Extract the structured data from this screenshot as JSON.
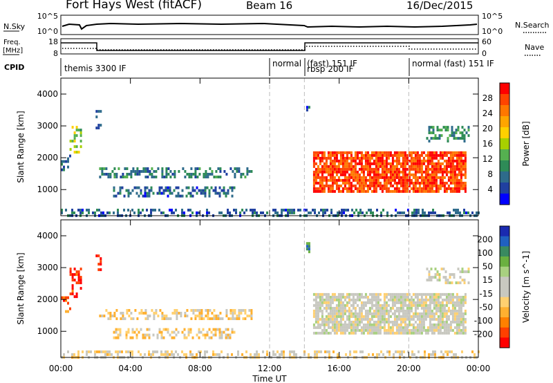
{
  "header": {
    "station": "Fort Hays West (fitACF)",
    "beam": "Beam 16",
    "date": "16/Dec/2015"
  },
  "top_panels": {
    "nsky_label": "N.Sky",
    "nsky_ticks": [
      "10^5",
      "10^0"
    ],
    "nsearch_label": "N.Search",
    "nsearch_ticks": [
      "10^5",
      "10^0"
    ],
    "freq_label_1": "Freq.",
    "freq_label_2": "[MHz]",
    "freq_ticks": [
      "18",
      "8"
    ],
    "nave_label": "Nave",
    "nave_ticks": [
      "60",
      "0"
    ],
    "cpid_label": "CPID",
    "cpid_segments": [
      {
        "label": "themis 3300 IF",
        "start_h": 0,
        "end_h": 12
      },
      {
        "label": "normal",
        "start_h": 12,
        "end_h": 14
      },
      {
        "label": "(fast) 151 IF",
        "start_h": 14,
        "end_h": 20
      },
      {
        "label": "rbsp 200 IF",
        "start_h": 14,
        "end_h": 20
      },
      {
        "label": "normal (fast) 151 IF",
        "start_h": 20,
        "end_h": 24
      }
    ]
  },
  "chart_data": [
    {
      "type": "heatmap",
      "title": "",
      "xlabel": "Time UT",
      "ylabel": "Slant Range [km]",
      "x_ticks": [
        "00:00",
        "04:00",
        "08:00",
        "12:00",
        "16:00",
        "20:00",
        "00:00"
      ],
      "xlim_hours": [
        0,
        24
      ],
      "y_ticks": [
        1000,
        2000,
        3000,
        4000
      ],
      "ylim": [
        180,
        4500
      ],
      "colorbar_label": "Power [dB]",
      "colorbar_ticks": [
        28,
        24,
        20,
        16,
        12,
        8,
        4
      ],
      "colorbar_range": [
        0,
        30
      ],
      "colorbar_colors": [
        "#ff0000",
        "#ff4400",
        "#ff7700",
        "#ffa500",
        "#ffd000",
        "#a8d000",
        "#55b050",
        "#2e8b57",
        "#2e6b8b",
        "#2040a0",
        "#0000ff"
      ],
      "echo_regions": [
        {
          "t0": 0.0,
          "t1": 0.5,
          "r0": 1600,
          "r1": 2100,
          "value": 6
        },
        {
          "t0": 0.5,
          "t1": 1.2,
          "r0": 2100,
          "r1": 3000,
          "value": 14
        },
        {
          "t0": 2.0,
          "t1": 2.3,
          "r0": 2900,
          "r1": 3500,
          "value": 6
        },
        {
          "t0": 2.2,
          "t1": 11.0,
          "r0": 1400,
          "r1": 1700,
          "value": 8
        },
        {
          "t0": 3.0,
          "t1": 10.0,
          "r0": 800,
          "r1": 1100,
          "value": 6
        },
        {
          "t0": 14.1,
          "t1": 14.3,
          "r0": 3500,
          "r1": 3800,
          "value": 6
        },
        {
          "t0": 14.5,
          "t1": 23.3,
          "r0": 900,
          "r1": 2200,
          "value": 26
        },
        {
          "t0": 21.0,
          "t1": 23.5,
          "r0": 2500,
          "r1": 3000,
          "value": 10
        },
        {
          "t0": 0.0,
          "t1": 24.0,
          "r0": 180,
          "r1": 400,
          "value": 6
        }
      ]
    },
    {
      "type": "heatmap",
      "title": "",
      "xlabel": "Time UT",
      "ylabel": "Slant Range [km]",
      "x_ticks": [
        "00:00",
        "04:00",
        "08:00",
        "12:00",
        "16:00",
        "20:00",
        "00:00"
      ],
      "xlim_hours": [
        0,
        24
      ],
      "y_ticks": [
        1000,
        2000,
        3000,
        4000
      ],
      "ylim": [
        180,
        4500
      ],
      "colorbar_label": "Velocity [m s^-1]",
      "colorbar_ticks": [
        "200",
        "100",
        "50",
        "15",
        "-15",
        "-50",
        "-100",
        "-200"
      ],
      "colorbar_range": [
        -250,
        250
      ],
      "colorbar_colors": [
        "#1a2ab0",
        "#2060c0",
        "#3a8a60",
        "#6ab040",
        "#a8d080",
        "#c8c8c0",
        "#c8c8c0",
        "#ffd070",
        "#ffb030",
        "#ff8000",
        "#ff4000",
        "#ff0000"
      ],
      "echo_regions": [
        {
          "t0": 0.0,
          "t1": 0.5,
          "r0": 1600,
          "r1": 2100,
          "value": -150
        },
        {
          "t0": 0.5,
          "t1": 1.2,
          "r0": 2100,
          "r1": 3000,
          "value": -220
        },
        {
          "t0": 2.0,
          "t1": 2.3,
          "r0": 2900,
          "r1": 3500,
          "value": -220
        },
        {
          "t0": 2.2,
          "t1": 11.0,
          "r0": 1400,
          "r1": 1700,
          "value": -60
        },
        {
          "t0": 3.0,
          "t1": 10.0,
          "r0": 800,
          "r1": 1100,
          "value": -60
        },
        {
          "t0": 14.1,
          "t1": 14.3,
          "r0": 3500,
          "r1": 3800,
          "value": 150
        },
        {
          "t0": 14.5,
          "t1": 23.3,
          "r0": 900,
          "r1": 2200,
          "value": 0
        },
        {
          "t0": 21.0,
          "t1": 23.5,
          "r0": 2500,
          "r1": 3000,
          "value": 0
        },
        {
          "t0": 0.0,
          "t1": 24.0,
          "r0": 180,
          "r1": 400,
          "value": -40
        }
      ]
    }
  ]
}
